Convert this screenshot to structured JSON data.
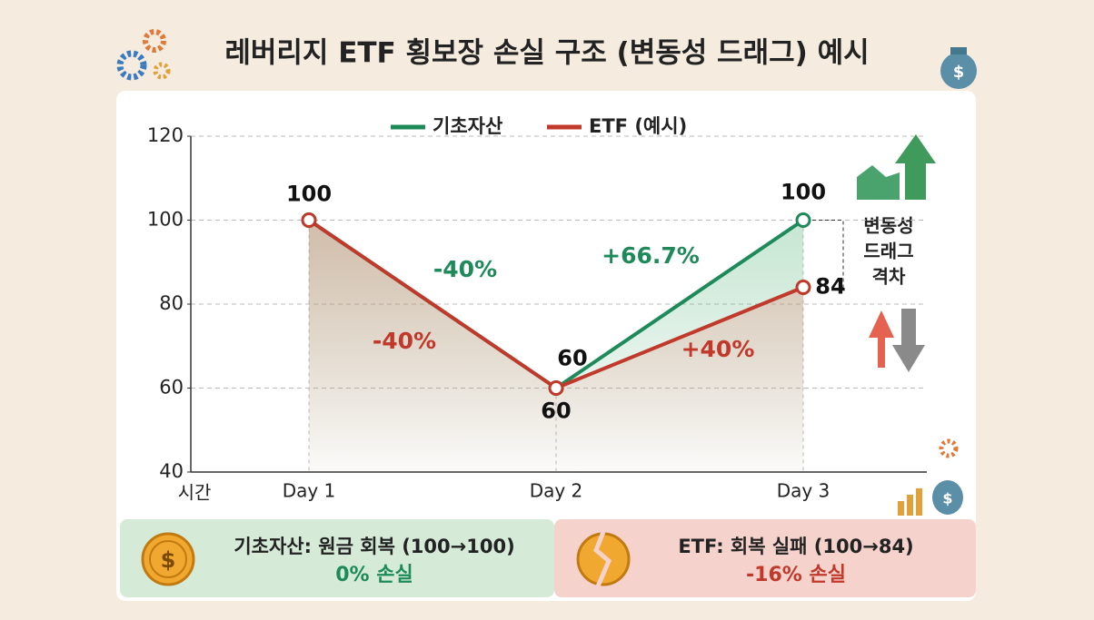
{
  "chart_data": {
    "type": "line",
    "title": "레버리지 ETF 횡보장 손실 구조 (변동성 드래그) 예시",
    "x_label": "시간",
    "categories": [
      "Day 1",
      "Day 2",
      "Day 3"
    ],
    "series": [
      {
        "name": "기초자산",
        "color": "#1e8a5a",
        "values": [
          100,
          60,
          100
        ],
        "change_labels": [
          "-40%",
          "+66.7%"
        ]
      },
      {
        "name": "ETF (예시)",
        "color": "#c0392b",
        "values": [
          100,
          60,
          84
        ],
        "value_labels": [
          null,
          "60",
          "84"
        ],
        "change_labels": [
          "-40%",
          "+40%"
        ]
      }
    ],
    "ylim": [
      40,
      120
    ],
    "yticks": [
      40,
      60,
      80,
      100,
      120
    ],
    "grid": true,
    "gap_label": [
      "변동성",
      "드래그",
      "격차"
    ]
  },
  "panels": [
    {
      "title": "기초자산: 원금 회복 (100→100)",
      "result": "0% 손실"
    },
    {
      "title": "ETF: 회복 실패 (100→84)",
      "result": "-16% 손실"
    }
  ]
}
